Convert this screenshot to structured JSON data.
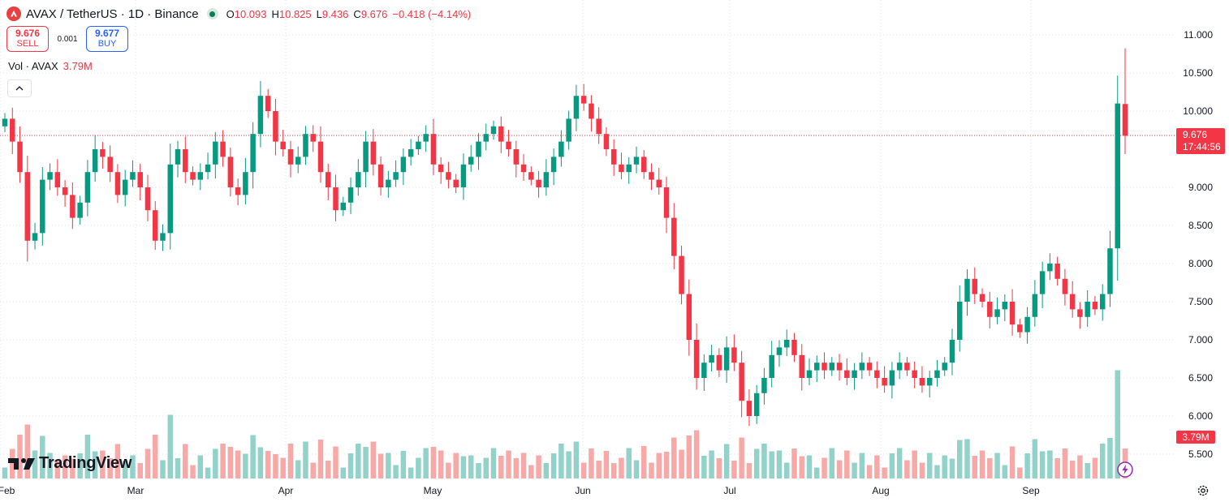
{
  "header": {
    "title": "AVAX / TetherUS · 1D · Binance",
    "ohlc": [
      {
        "key": "O",
        "value": "10.093"
      },
      {
        "key": "H",
        "value": "10.825"
      },
      {
        "key": "L",
        "value": "9.436"
      },
      {
        "key": "C",
        "value": "9.676"
      }
    ],
    "change": "−0.418 (−4.14%)"
  },
  "trade": {
    "sell_price": "9.676",
    "sell_label": "SELL",
    "spread": "0.001",
    "buy_price": "9.677",
    "buy_label": "BUY"
  },
  "volume_legend": {
    "label": "Vol · AVAX",
    "value": "3.79M"
  },
  "price_tag": {
    "price": "9.676",
    "countdown": "17:44:56"
  },
  "volume_tag": "3.79M",
  "logo": "TradingView",
  "colors": {
    "up": "#089981",
    "down": "#f23645",
    "up_volume": "#92d2c8",
    "down_volume": "#f7a9a7"
  },
  "chart_data": {
    "type": "candlestick",
    "symbol": "AVAX / TetherUS",
    "interval": "1D",
    "exchange": "Binance",
    "y_ticks": [
      "11.000",
      "10.500",
      "10.000",
      "9.000",
      "8.500",
      "8.000",
      "7.500",
      "7.000",
      "6.500",
      "6.000",
      "5.500"
    ],
    "x_ticks": [
      "Feb",
      "Mar",
      "Apr",
      "May",
      "Jun",
      "Jul",
      "Aug",
      "Sep"
    ],
    "ylim": [
      5.35,
      11.2
    ],
    "last_price": 9.676,
    "grid": true,
    "candle_closes": [
      9.9,
      9.6,
      9.2,
      8.3,
      8.4,
      9.1,
      9.2,
      9.0,
      8.9,
      8.6,
      8.8,
      9.2,
      9.5,
      9.4,
      9.2,
      8.9,
      9.1,
      9.2,
      9.0,
      8.7,
      8.3,
      8.4,
      9.3,
      9.5,
      9.2,
      9.1,
      9.2,
      9.3,
      9.6,
      9.4,
      9.0,
      8.9,
      9.2,
      9.7,
      10.2,
      10.0,
      9.6,
      9.5,
      9.3,
      9.4,
      9.7,
      9.6,
      9.2,
      9.0,
      8.7,
      8.8,
      9.0,
      9.2,
      9.6,
      9.3,
      9.0,
      9.1,
      9.2,
      9.4,
      9.5,
      9.6,
      9.7,
      9.3,
      9.2,
      9.1,
      9.0,
      9.3,
      9.4,
      9.6,
      9.7,
      9.8,
      9.6,
      9.5,
      9.3,
      9.2,
      9.1,
      9.0,
      9.2,
      9.4,
      9.6,
      9.9,
      10.2,
      10.1,
      9.9,
      9.7,
      9.5,
      9.3,
      9.2,
      9.3,
      9.4,
      9.2,
      9.1,
      9.0,
      8.6,
      8.1,
      7.6,
      7.0,
      6.5,
      6.7,
      6.8,
      6.6,
      6.9,
      6.7,
      6.2,
      6.0,
      6.3,
      6.5,
      6.8,
      6.9,
      7.0,
      6.8,
      6.5,
      6.6,
      6.7,
      6.6,
      6.7,
      6.6,
      6.5,
      6.6,
      6.7,
      6.6,
      6.5,
      6.4,
      6.6,
      6.7,
      6.6,
      6.5,
      6.4,
      6.5,
      6.6,
      6.7,
      7.0,
      7.5,
      7.8,
      7.6,
      7.5,
      7.3,
      7.4,
      7.5,
      7.2,
      7.1,
      7.3,
      7.6,
      7.9,
      8.0,
      7.8,
      7.6,
      7.4,
      7.3,
      7.5,
      7.4,
      7.6,
      8.2,
      10.1,
      9.676
    ]
  }
}
